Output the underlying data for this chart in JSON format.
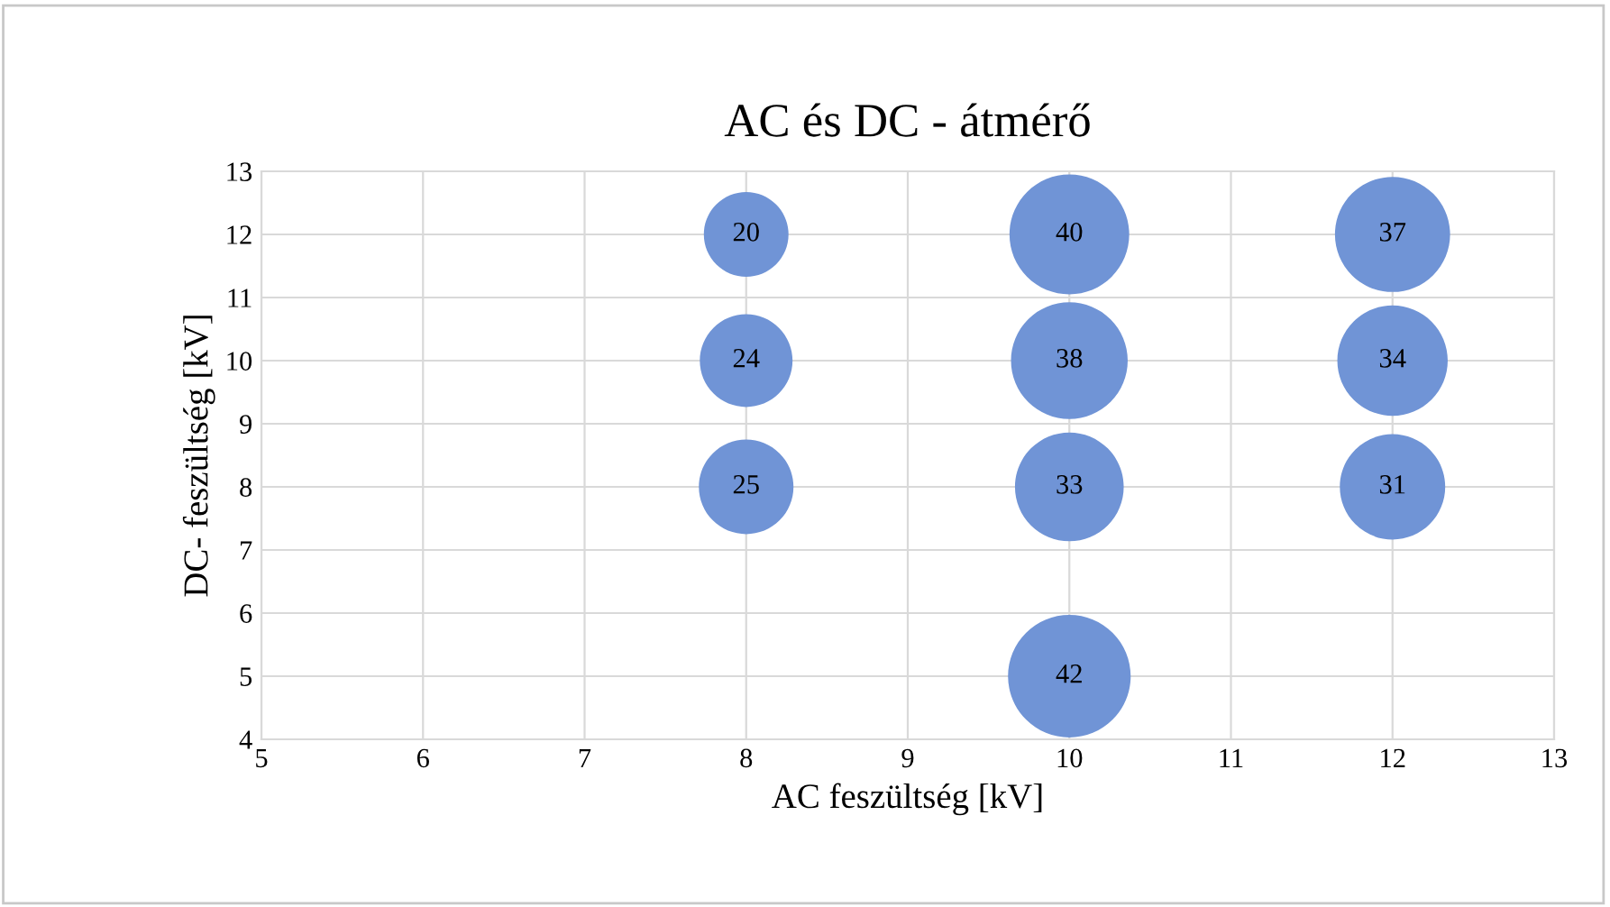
{
  "chart_data": {
    "type": "bubble",
    "title": "AC és DC - átmérő",
    "xlabel": "AC feszültség [kV]",
    "ylabel": "DC- feszültség [kV]",
    "x": [
      8,
      8,
      8,
      10,
      10,
      10,
      10,
      12,
      12,
      12
    ],
    "values": [
      12,
      10,
      8,
      12,
      10,
      8,
      5,
      12,
      10,
      8
    ],
    "sizes": [
      20,
      24,
      25,
      40,
      38,
      33,
      42,
      37,
      34,
      31
    ],
    "value_labels": [
      "20",
      "24",
      "25",
      "40",
      "38",
      "33",
      "42",
      "37",
      "34",
      "31"
    ],
    "color": "#7094d6",
    "xlim": [
      5,
      13
    ],
    "xticks": [
      5,
      6,
      7,
      8,
      9,
      10,
      11,
      12,
      13
    ],
    "ylim": [
      4,
      13
    ],
    "yticks": [
      4,
      5,
      6,
      7,
      8,
      9,
      10,
      11,
      12,
      13
    ],
    "grid": true
  }
}
